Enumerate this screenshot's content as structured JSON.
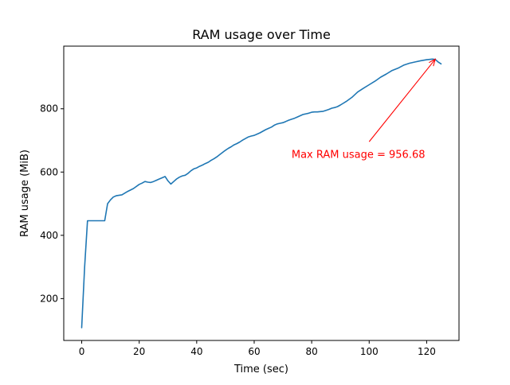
{
  "chart_data": {
    "type": "line",
    "title": "RAM usage over Time",
    "xlabel": "Time (sec)",
    "ylabel": "RAM usage (MiB)",
    "xlim": [
      -6.25,
      131.25
    ],
    "ylim": [
      67.7,
      998.0
    ],
    "xticks": [
      0,
      20,
      40,
      60,
      80,
      100,
      120
    ],
    "yticks": [
      200,
      400,
      600,
      800
    ],
    "grid": false,
    "line_color": "#1f77b4",
    "annotation_color": "#ff0000",
    "series": [
      {
        "x": [
          0,
          1,
          2,
          3,
          4,
          5,
          6,
          7,
          8,
          9,
          10,
          11,
          12,
          14,
          16,
          18,
          20,
          21,
          22,
          23,
          24,
          25,
          26,
          27,
          28,
          29,
          30,
          31,
          32,
          33,
          34,
          35,
          36,
          37,
          38,
          39,
          40,
          41,
          42,
          43,
          44,
          45,
          46,
          47,
          48,
          49,
          50,
          51,
          52,
          53,
          54,
          55,
          56,
          57,
          58,
          59,
          60,
          61,
          62,
          63,
          64,
          65,
          66,
          67,
          68,
          69,
          70,
          71,
          72,
          73,
          74,
          75,
          76,
          77,
          78,
          79,
          80,
          81,
          82,
          83,
          84,
          85,
          86,
          87,
          88,
          89,
          90,
          92,
          94,
          96,
          98,
          100,
          102,
          104,
          106,
          108,
          110,
          112,
          114,
          116,
          118,
          120,
          122,
          123,
          124,
          125
        ],
        "y": [
          108,
          300,
          446,
          446,
          446,
          446,
          446,
          446,
          446,
          500,
          512,
          521,
          525,
          528,
          539,
          548,
          561,
          565,
          570,
          568,
          567,
          570,
          574,
          578,
          582,
          586,
          572,
          562,
          570,
          578,
          584,
          588,
          590,
          596,
          604,
          610,
          613,
          618,
          622,
          627,
          631,
          637,
          642,
          648,
          655,
          662,
          669,
          675,
          680,
          686,
          690,
          695,
          701,
          706,
          711,
          714,
          716,
          720,
          724,
          729,
          734,
          738,
          742,
          748,
          752,
          754,
          756,
          760,
          764,
          767,
          770,
          774,
          778,
          782,
          784,
          786,
          789,
          790,
          790,
          791,
          792,
          795,
          798,
          802,
          804,
          807,
          812,
          823,
          836,
          853,
          865,
          876,
          887,
          900,
          910,
          921,
          928,
          938,
          944,
          948,
          952,
          955,
          957,
          956,
          948,
          942
        ]
      }
    ],
    "annotation": {
      "text": "Max RAM usage = 956.68",
      "x": 123,
      "y": 956.68,
      "text_x": 73,
      "text_y": 657
    }
  }
}
